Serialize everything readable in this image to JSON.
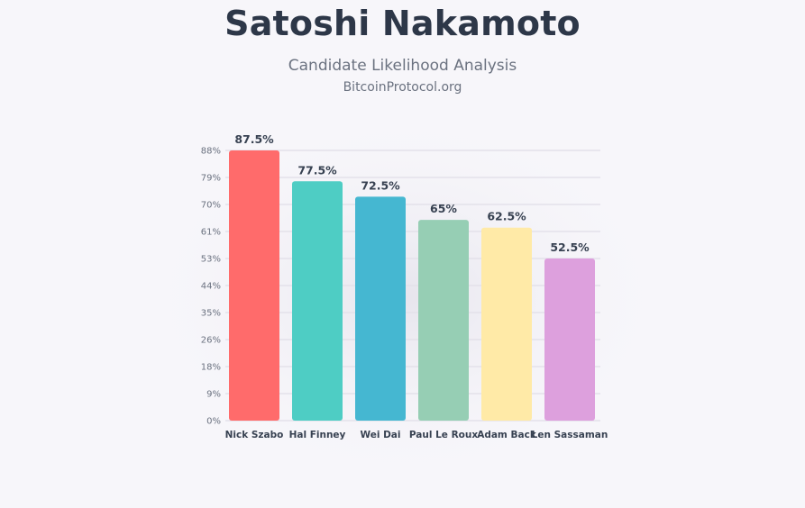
{
  "header": {
    "title": "Satoshi Nakamoto",
    "subtitle": "Candidate Likelihood Analysis",
    "source": "BitcoinProtocol.org"
  },
  "chart_data": {
    "type": "bar",
    "categories": [
      "Nick Szabo",
      "Hal Finney",
      "Wei Dai",
      "Paul Le Roux",
      "Adam Back",
      "Len Sassaman"
    ],
    "values": [
      87.5,
      77.5,
      72.5,
      65,
      62.5,
      52.5
    ],
    "value_labels": [
      "87.5%",
      "77.5%",
      "72.5%",
      "65%",
      "62.5%",
      "52.5%"
    ],
    "colors": [
      "#ff6b6b",
      "#4ecdc4",
      "#45b7d1",
      "#96ceb4",
      "#ffeaa7",
      "#dda0dd"
    ],
    "yticks": [
      "0%",
      "9%",
      "18%",
      "26%",
      "35%",
      "44%",
      "53%",
      "61%",
      "70%",
      "79%",
      "88%"
    ],
    "ylim": [
      0,
      87.5
    ],
    "grid": true,
    "xlabel": "",
    "ylabel": ""
  }
}
